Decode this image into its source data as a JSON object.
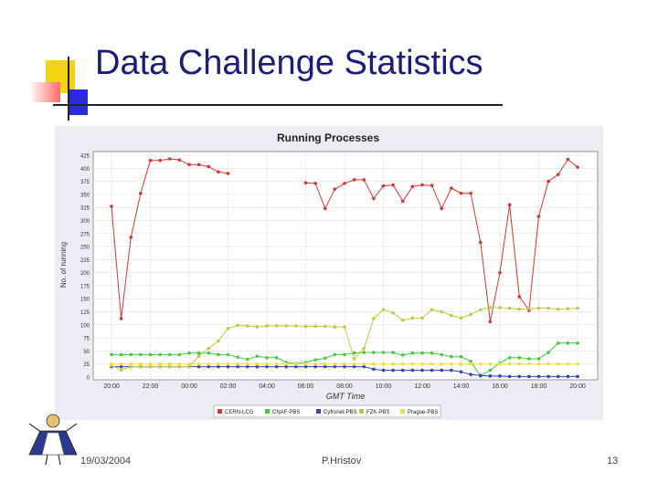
{
  "slide": {
    "title": "Data Challenge Statistics",
    "footer_date": "19/03/2004",
    "footer_author": "P.Hristov",
    "page_number": "13"
  },
  "chart_data": {
    "type": "line",
    "title": "Running Processes",
    "xlabel": "GMT Time",
    "ylabel": "No. of running",
    "ylim": [
      0,
      425
    ],
    "grid": true,
    "legend": "bottom",
    "y_ticks": [
      "0",
      "25",
      "50",
      "75",
      "100",
      "125",
      "150",
      "175",
      "200",
      "225",
      "250",
      "275",
      "300",
      "325",
      "350",
      "375",
      "400",
      "425"
    ],
    "x_ticks": [
      {
        "label": "20:00",
        "index": 0
      },
      {
        "label": "22:00",
        "index": 4
      },
      {
        "label": "00:00",
        "index": 8
      },
      {
        "label": "02:00",
        "index": 12
      },
      {
        "label": "04:00",
        "index": 16
      },
      {
        "label": "06:00",
        "index": 20
      },
      {
        "label": "08:00",
        "index": 24
      },
      {
        "label": "10:00",
        "index": 28
      },
      {
        "label": "12:00",
        "index": 32
      },
      {
        "label": "14:00",
        "index": 36
      },
      {
        "label": "16:00",
        "index": 40
      },
      {
        "label": "18:00",
        "index": 44
      },
      {
        "label": "20:00",
        "index": 48
      }
    ],
    "series": [
      {
        "name": "CERN-LCG",
        "color": "#dd3333",
        "values": [
          327,
          112,
          268,
          352,
          415,
          415,
          418,
          416,
          407,
          407,
          403,
          393,
          390,
          null,
          null,
          null,
          null,
          null,
          null,
          null,
          372,
          371,
          323,
          360,
          371,
          378,
          378,
          342,
          366,
          368,
          337,
          365,
          368,
          367,
          323,
          362,
          352,
          352,
          258,
          106,
          200,
          330,
          154,
          128,
          308,
          375,
          388,
          417,
          402
        ]
      },
      {
        "name": "CNAF-PBS",
        "color": "#44cc44",
        "values": [
          43,
          43,
          43,
          43,
          43,
          43,
          43,
          43,
          46,
          46,
          46,
          43,
          43,
          38,
          34,
          40,
          37,
          37,
          28,
          26,
          28,
          33,
          36,
          43,
          43,
          46,
          47,
          47,
          47,
          47,
          42,
          46,
          46,
          46,
          43,
          39,
          39,
          30,
          2,
          13,
          27,
          37,
          37,
          35,
          35,
          47,
          65,
          65,
          65
        ]
      },
      {
        "name": "Cyfronet-PBS",
        "color": "#3344bb",
        "values": [
          20,
          20,
          20,
          20,
          20,
          20,
          20,
          20,
          20,
          20,
          20,
          20,
          20,
          20,
          20,
          20,
          20,
          20,
          20,
          20,
          20,
          20,
          20,
          20,
          20,
          20,
          20,
          15,
          13,
          13,
          13,
          13,
          13,
          13,
          13,
          13,
          10,
          5,
          3,
          2,
          2,
          1,
          1,
          1,
          1,
          1,
          1,
          1,
          1
        ]
      },
      {
        "name": "FZK-PBS",
        "color": "#c8c83c",
        "values": [
          22,
          14,
          20,
          20,
          20,
          20,
          20,
          20,
          20,
          40,
          55,
          69,
          93,
          99,
          98,
          96,
          98,
          98,
          98,
          98,
          97,
          97,
          97,
          96,
          96,
          35,
          55,
          112,
          129,
          123,
          109,
          113,
          113,
          129,
          125,
          118,
          113,
          120,
          129,
          133,
          133,
          132,
          130,
          131,
          132,
          132,
          130,
          131,
          132
        ]
      },
      {
        "name": "Prague-PBS",
        "color": "#eedd44",
        "values": [
          25,
          25,
          25,
          25,
          25,
          25,
          25,
          25,
          25,
          25,
          25,
          25,
          25,
          25,
          25,
          25,
          25,
          25,
          25,
          25,
          25,
          25,
          25,
          25,
          25,
          25,
          25,
          25,
          25,
          25,
          25,
          25,
          25,
          25,
          25,
          25,
          25,
          25,
          25,
          25,
          25,
          25,
          25,
          25,
          25,
          25,
          25,
          25,
          25
        ]
      }
    ]
  }
}
